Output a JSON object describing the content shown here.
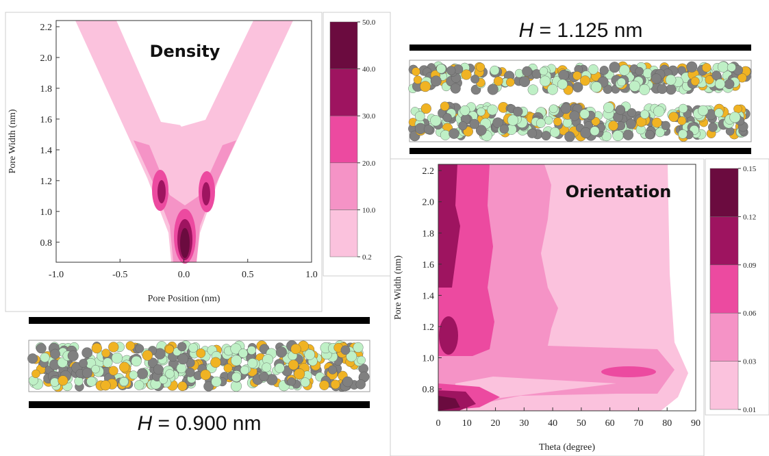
{
  "chart_data": [
    {
      "type": "contour",
      "title": "Density",
      "xlabel": "Pore Position (nm)",
      "ylabel": "Pore Width (nm)",
      "xlim": [
        -1,
        1
      ],
      "ylim": [
        0.67,
        2.24
      ],
      "xticks": [
        {
          "value": -1,
          "label": "-1.0"
        },
        -0.5,
        {
          "value": 0,
          "label": "0.0"
        },
        0.5,
        {
          "value": 1,
          "label": "1.0"
        }
      ],
      "yticks": [
        0.8,
        {
          "value": 1,
          "label": "1.0"
        },
        1.2,
        1.4,
        1.6,
        1.8,
        {
          "value": 2,
          "label": "2.0"
        },
        2.2
      ],
      "colorbar": {
        "ticks": [
          0.2,
          {
            "value": 10,
            "label": "10.0"
          },
          {
            "value": 20,
            "label": "20.0"
          },
          {
            "value": 30,
            "label": "30.0"
          },
          {
            "value": 40,
            "label": "40.0"
          },
          {
            "value": 50,
            "label": "50.0"
          }
        ],
        "colors": [
          "#fbc2dd",
          "#f593c6",
          "#ec4aa0",
          "#9e1460",
          "#6b0b3f"
        ]
      }
    },
    {
      "type": "contour",
      "title": "Orientation",
      "xlabel": "Theta (degree)",
      "ylabel": "Pore Width (nm)",
      "xlim": [
        0,
        90
      ],
      "ylim": [
        0.66,
        2.24
      ],
      "xticks": [
        0,
        10,
        20,
        30,
        40,
        50,
        60,
        70,
        80,
        90
      ],
      "yticks": [
        0.8,
        {
          "value": 1,
          "label": "1.0"
        },
        1.2,
        1.4,
        1.6,
        1.8,
        {
          "value": 2,
          "label": "2.0"
        },
        2.2
      ],
      "colorbar": {
        "ticks": [
          0.01,
          0.03,
          0.06,
          0.09,
          0.12,
          0.15
        ],
        "colors": [
          "#fbc2dd",
          "#f593c6",
          "#ec4aa0",
          "#9e1460",
          "#6b0b3f"
        ]
      }
    }
  ],
  "structures": [
    {
      "symbol": "H",
      "text": "= 1.125 nm"
    },
    {
      "symbol": "H",
      "text": "= 0.900 nm"
    }
  ]
}
